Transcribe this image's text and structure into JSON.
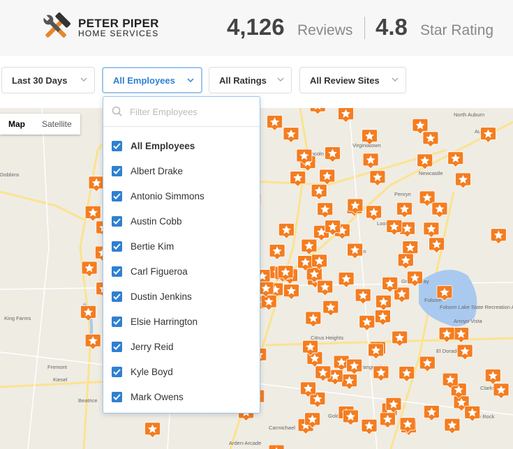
{
  "header": {
    "brand": "PETER PIPER",
    "brand_sub": "HOME SERVICES",
    "review_count": "4,126",
    "review_label": "Reviews",
    "rating": "4.8",
    "rating_label": "Star Rating"
  },
  "filters": [
    "Last 30 Days",
    "All Employees",
    "All Ratings",
    "All Review Sites"
  ],
  "map": {
    "toggle": [
      "Map",
      "Satellite"
    ],
    "places": [
      "North Auburn",
      "Auburn",
      "Virginiatown",
      "Lincoln",
      "Newcastle",
      "Penryn",
      "Loomis",
      "Rocklin",
      "Granite Bay",
      "Folsom",
      "Folsom Lake State Recreation Area",
      "King Farms",
      "Fremont",
      "Kiesel",
      "Beatrice",
      "Carmichael",
      "Arden-Arcade",
      "Gold River",
      "El Dorado Hills",
      "Clarksville",
      "White Rock",
      "Arroyo Vista",
      "Orangevale",
      "Citrus Heights",
      "Dobbins"
    ]
  },
  "dropdown": {
    "placeholder": "Filter Employees",
    "options": [
      "All Employees",
      "Albert Drake",
      "Antonio Simmons",
      "Austin Cobb",
      "Bertie Kim",
      "Carl Figueroa",
      "Dustin Jenkins",
      "Elsie Harrington",
      "Jerry Reid",
      "Kyle Boyd",
      "Mark Owens"
    ]
  }
}
